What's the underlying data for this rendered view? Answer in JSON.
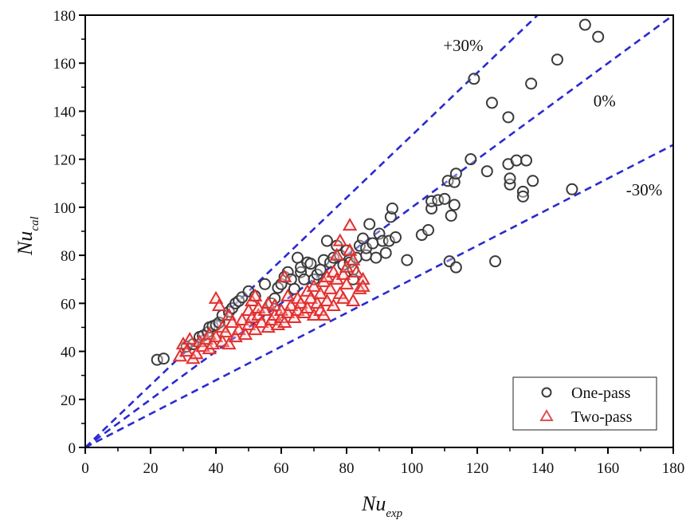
{
  "chart_data": {
    "type": "scatter",
    "title": "",
    "xlabel": "Nu",
    "xlabel_subscript": "exp",
    "ylabel": "Nu",
    "ylabel_subscript": "cal",
    "xlim": [
      0,
      180
    ],
    "ylim": [
      0,
      180
    ],
    "x_ticks": [
      0,
      20,
      40,
      60,
      80,
      100,
      120,
      140,
      160,
      180
    ],
    "y_ticks": [
      0,
      20,
      40,
      60,
      80,
      100,
      120,
      140,
      160,
      180
    ],
    "x_minor_step": 10,
    "y_minor_step": 10,
    "grid": false,
    "legend": {
      "position": "bottom-right",
      "entries": [
        "One-pass",
        "Two-pass"
      ]
    },
    "reference_lines": [
      {
        "label": "+30%",
        "slope": 1.3,
        "color": "#2a2ad0",
        "style": "dashed"
      },
      {
        "label": "0%",
        "slope": 1.0,
        "color": "#2a2ad0",
        "style": "dashed"
      },
      {
        "label": "-30%",
        "slope": 0.7,
        "color": "#2a2ad0",
        "style": "dashed"
      }
    ],
    "annotations": [
      {
        "text": "+30%",
        "x": 112,
        "y": 165
      },
      {
        "text": "0%",
        "x": 158,
        "y": 142
      },
      {
        "text": "-30%",
        "x": 168,
        "y": 105
      }
    ],
    "series": [
      {
        "name": "One-pass",
        "marker": "circle",
        "color": "#3a3a3a",
        "points": [
          [
            22,
            36.5
          ],
          [
            24,
            37
          ],
          [
            31,
            42
          ],
          [
            33,
            43
          ],
          [
            35,
            46
          ],
          [
            36,
            46.5
          ],
          [
            37.5,
            48
          ],
          [
            38,
            50
          ],
          [
            39,
            50.5
          ],
          [
            40,
            51
          ],
          [
            41,
            52
          ],
          [
            42,
            55
          ],
          [
            44,
            56.5
          ],
          [
            45,
            58
          ],
          [
            46,
            60
          ],
          [
            47,
            61
          ],
          [
            48,
            62.5
          ],
          [
            50,
            65
          ],
          [
            52,
            63
          ],
          [
            55,
            68
          ],
          [
            57,
            60
          ],
          [
            58,
            62
          ],
          [
            59,
            66.5
          ],
          [
            60,
            68
          ],
          [
            61,
            71
          ],
          [
            62,
            73
          ],
          [
            63,
            70
          ],
          [
            64,
            66
          ],
          [
            65,
            79
          ],
          [
            66,
            73
          ],
          [
            66,
            75
          ],
          [
            67,
            70
          ],
          [
            68,
            77
          ],
          [
            69,
            76.5
          ],
          [
            70,
            70
          ],
          [
            71,
            72
          ],
          [
            72,
            74
          ],
          [
            73,
            78
          ],
          [
            74,
            86
          ],
          [
            75,
            77
          ],
          [
            76,
            79
          ],
          [
            77,
            84
          ],
          [
            78,
            80
          ],
          [
            79,
            76
          ],
          [
            80,
            82
          ],
          [
            81,
            77
          ],
          [
            82,
            74
          ],
          [
            82,
            70
          ],
          [
            83,
            79
          ],
          [
            84,
            84
          ],
          [
            85,
            87
          ],
          [
            86,
            80
          ],
          [
            86,
            83
          ],
          [
            87,
            93
          ],
          [
            88,
            85
          ],
          [
            89,
            79
          ],
          [
            90,
            89
          ],
          [
            91,
            86
          ],
          [
            92,
            81
          ],
          [
            93,
            86
          ],
          [
            93.5,
            96
          ],
          [
            94,
            99.5
          ],
          [
            95,
            87.5
          ],
          [
            98.5,
            78
          ],
          [
            103,
            88.5
          ],
          [
            105,
            90.5
          ],
          [
            106,
            99.5
          ],
          [
            106,
            102.5
          ],
          [
            108,
            103
          ],
          [
            110,
            103.5
          ],
          [
            111,
            111
          ],
          [
            111.5,
            77.5
          ],
          [
            112,
            96.5
          ],
          [
            113,
            101
          ],
          [
            113,
            110.5
          ],
          [
            113.5,
            114
          ],
          [
            113.5,
            75
          ],
          [
            118,
            120
          ],
          [
            119,
            153.5
          ],
          [
            123,
            115
          ],
          [
            124.5,
            143.5
          ],
          [
            125.5,
            77.5
          ],
          [
            129.5,
            137.5
          ],
          [
            129.5,
            118
          ],
          [
            130,
            109.5
          ],
          [
            130,
            112
          ],
          [
            132,
            119.5
          ],
          [
            134,
            106.5
          ],
          [
            134,
            104.5
          ],
          [
            135,
            119.5
          ],
          [
            136.5,
            151.5
          ],
          [
            137,
            111
          ],
          [
            144.5,
            161.5
          ],
          [
            149,
            107.5
          ],
          [
            153,
            176
          ],
          [
            157,
            171
          ]
        ]
      },
      {
        "name": "Two-pass",
        "marker": "triangle",
        "color": "#e03030",
        "points": [
          [
            29,
            38
          ],
          [
            30,
            43
          ],
          [
            31,
            40
          ],
          [
            32,
            45
          ],
          [
            33,
            37
          ],
          [
            34,
            39
          ],
          [
            35,
            44
          ],
          [
            36,
            42
          ],
          [
            37,
            45
          ],
          [
            38,
            41
          ],
          [
            38,
            47
          ],
          [
            39,
            43
          ],
          [
            40,
            46
          ],
          [
            40,
            62
          ],
          [
            41,
            59
          ],
          [
            42,
            44
          ],
          [
            42,
            50
          ],
          [
            43,
            48
          ],
          [
            44,
            43
          ],
          [
            44,
            55
          ],
          [
            45,
            52
          ],
          [
            46,
            46
          ],
          [
            47,
            49
          ],
          [
            48,
            53
          ],
          [
            49,
            47
          ],
          [
            50,
            51
          ],
          [
            50,
            57
          ],
          [
            51,
            54
          ],
          [
            51,
            61
          ],
          [
            52,
            49
          ],
          [
            52,
            63
          ],
          [
            53,
            55
          ],
          [
            53,
            58
          ],
          [
            54,
            52
          ],
          [
            55,
            57
          ],
          [
            56,
            50
          ],
          [
            56,
            60
          ],
          [
            57,
            53
          ],
          [
            58,
            55
          ],
          [
            58,
            59
          ],
          [
            59,
            51
          ],
          [
            60,
            54
          ],
          [
            60,
            57
          ],
          [
            61,
            52
          ],
          [
            61,
            71
          ],
          [
            62,
            56
          ],
          [
            62,
            63
          ],
          [
            63,
            59
          ],
          [
            64,
            54
          ],
          [
            65,
            62
          ],
          [
            65,
            57
          ],
          [
            66,
            60
          ],
          [
            67,
            56
          ],
          [
            68,
            65
          ],
          [
            68,
            58
          ],
          [
            69,
            62
          ],
          [
            70,
            55
          ],
          [
            70,
            67
          ],
          [
            71,
            60
          ],
          [
            72,
            64
          ],
          [
            72,
            57
          ],
          [
            73,
            69
          ],
          [
            73,
            55
          ],
          [
            74,
            71
          ],
          [
            74,
            61
          ],
          [
            75,
            66
          ],
          [
            76,
            73
          ],
          [
            76,
            59
          ],
          [
            77,
            70
          ],
          [
            77,
            80
          ],
          [
            78,
            86
          ],
          [
            78,
            64
          ],
          [
            79,
            72
          ],
          [
            79,
            62
          ],
          [
            80,
            75
          ],
          [
            80,
            68
          ],
          [
            81,
            92.5
          ],
          [
            81,
            82
          ],
          [
            82,
            78
          ],
          [
            82,
            61
          ],
          [
            83,
            73
          ],
          [
            84,
            66
          ],
          [
            85,
            70
          ],
          [
            85,
            67
          ]
        ]
      }
    ]
  }
}
